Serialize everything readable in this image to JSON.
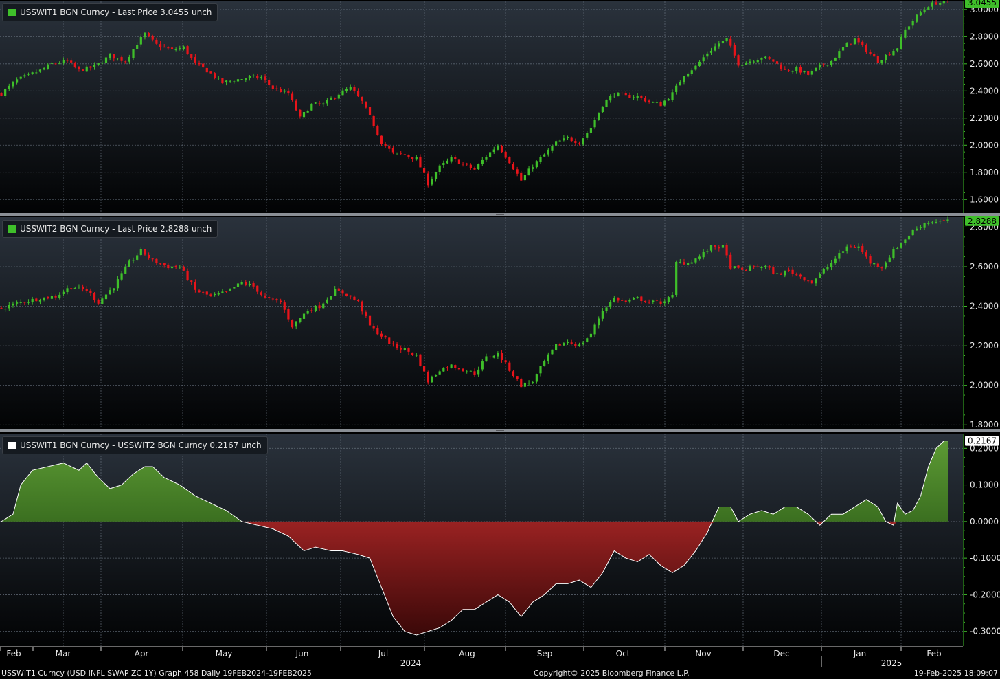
{
  "footer": {
    "left": "USSWIT1 Curncy (USD INFL SWAP ZC 1Y) Graph 458  Daily 19FEB2024-19FEB2025",
    "center": "Copyright© 2025 Bloomberg Finance L.P.",
    "right": "19-Feb-2025 18:09:07"
  },
  "colors": {
    "up": "#3fbf2a",
    "down": "#e8141a",
    "positive_fill": "#4a8a28",
    "negative_fill": "#8a1e1e",
    "axis_green": "#3fbf2a"
  },
  "x_axis": {
    "months": [
      "Feb",
      "Mar",
      "Apr",
      "May",
      "Jun",
      "Jul",
      "Aug",
      "Sep",
      "Oct",
      "Nov",
      "Dec",
      "Jan",
      "Feb"
    ],
    "years": [
      "2024",
      "2025"
    ]
  },
  "chart_data": [
    {
      "type": "candlestick",
      "legend": "USSWIT1 BGN Curncy - Last Price 3.0455  unch",
      "last_value_label": "3.0455",
      "ylim": [
        1.5,
        3.06
      ],
      "yticks": [
        "1.6000",
        "1.8000",
        "2.0000",
        "2.2000",
        "2.4000",
        "2.6000",
        "2.8000",
        "3.0000"
      ],
      "anchors": [
        [
          0,
          2.38
        ],
        [
          4,
          2.48
        ],
        [
          10,
          2.55
        ],
        [
          13,
          2.6
        ],
        [
          17,
          2.62
        ],
        [
          20,
          2.55
        ],
        [
          24,
          2.58
        ],
        [
          28,
          2.66
        ],
        [
          32,
          2.62
        ],
        [
          35,
          2.75
        ],
        [
          37,
          2.82
        ],
        [
          40,
          2.74
        ],
        [
          44,
          2.7
        ],
        [
          47,
          2.72
        ],
        [
          50,
          2.6
        ],
        [
          53,
          2.55
        ],
        [
          57,
          2.46
        ],
        [
          60,
          2.48
        ],
        [
          64,
          2.5
        ],
        [
          67,
          2.5
        ],
        [
          70,
          2.42
        ],
        [
          74,
          2.38
        ],
        [
          77,
          2.2
        ],
        [
          80,
          2.3
        ],
        [
          83,
          2.3
        ],
        [
          87,
          2.38
        ],
        [
          90,
          2.42
        ],
        [
          93,
          2.32
        ],
        [
          96,
          2.15
        ],
        [
          98,
          2.02
        ],
        [
          101,
          1.94
        ],
        [
          104,
          1.93
        ],
        [
          107,
          1.9
        ],
        [
          110,
          1.72
        ],
        [
          113,
          1.84
        ],
        [
          116,
          1.9
        ],
        [
          119,
          1.86
        ],
        [
          122,
          1.82
        ],
        [
          125,
          1.92
        ],
        [
          128,
          2.0
        ],
        [
          131,
          1.88
        ],
        [
          134,
          1.74
        ],
        [
          137,
          1.85
        ],
        [
          140,
          1.93
        ],
        [
          143,
          2.02
        ],
        [
          146,
          2.05
        ],
        [
          149,
          2.02
        ],
        [
          152,
          2.13
        ],
        [
          155,
          2.3
        ],
        [
          158,
          2.38
        ],
        [
          161,
          2.36
        ],
        [
          164,
          2.36
        ],
        [
          167,
          2.32
        ],
        [
          170,
          2.3
        ],
        [
          173,
          2.38
        ],
        [
          176,
          2.52
        ],
        [
          179,
          2.58
        ],
        [
          182,
          2.68
        ],
        [
          185,
          2.75
        ],
        [
          187,
          2.78
        ],
        [
          190,
          2.6
        ],
        [
          193,
          2.62
        ],
        [
          196,
          2.65
        ],
        [
          199,
          2.62
        ],
        [
          202,
          2.55
        ],
        [
          205,
          2.56
        ],
        [
          208,
          2.52
        ],
        [
          211,
          2.58
        ],
        [
          214,
          2.62
        ],
        [
          217,
          2.72
        ],
        [
          220,
          2.78
        ],
        [
          223,
          2.7
        ],
        [
          226,
          2.62
        ],
        [
          229,
          2.68
        ],
        [
          231,
          2.72
        ],
        [
          233,
          2.85
        ],
        [
          236,
          2.95
        ],
        [
          239,
          3.03
        ],
        [
          241,
          3.05
        ]
      ]
    },
    {
      "type": "candlestick",
      "legend": "USSWIT2 BGN Curncy - Last Price 2.8288  unch",
      "last_value_label": "2.8288",
      "ylim": [
        1.78,
        2.85
      ],
      "yticks": [
        "1.8000",
        "2.0000",
        "2.2000",
        "2.4000",
        "2.6000",
        "2.8000"
      ],
      "anchors": [
        [
          0,
          2.39
        ],
        [
          5,
          2.42
        ],
        [
          10,
          2.44
        ],
        [
          14,
          2.45
        ],
        [
          18,
          2.5
        ],
        [
          22,
          2.48
        ],
        [
          25,
          2.42
        ],
        [
          29,
          2.5
        ],
        [
          33,
          2.62
        ],
        [
          36,
          2.68
        ],
        [
          39,
          2.63
        ],
        [
          43,
          2.6
        ],
        [
          46,
          2.6
        ],
        [
          50,
          2.48
        ],
        [
          54,
          2.45
        ],
        [
          58,
          2.47
        ],
        [
          62,
          2.52
        ],
        [
          65,
          2.5
        ],
        [
          68,
          2.44
        ],
        [
          72,
          2.42
        ],
        [
          75,
          2.3
        ],
        [
          79,
          2.38
        ],
        [
          82,
          2.4
        ],
        [
          86,
          2.48
        ],
        [
          89,
          2.46
        ],
        [
          92,
          2.42
        ],
        [
          95,
          2.3
        ],
        [
          98,
          2.25
        ],
        [
          101,
          2.2
        ],
        [
          104,
          2.18
        ],
        [
          107,
          2.15
        ],
        [
          110,
          2.02
        ],
        [
          113,
          2.08
        ],
        [
          116,
          2.1
        ],
        [
          119,
          2.08
        ],
        [
          122,
          2.06
        ],
        [
          125,
          2.14
        ],
        [
          128,
          2.16
        ],
        [
          131,
          2.08
        ],
        [
          134,
          2.0
        ],
        [
          137,
          2.02
        ],
        [
          140,
          2.12
        ],
        [
          143,
          2.2
        ],
        [
          146,
          2.22
        ],
        [
          149,
          2.2
        ],
        [
          152,
          2.26
        ],
        [
          155,
          2.38
        ],
        [
          158,
          2.44
        ],
        [
          161,
          2.42
        ],
        [
          164,
          2.44
        ],
        [
          167,
          2.42
        ],
        [
          170,
          2.42
        ],
        [
          173,
          2.45
        ],
        [
          174,
          2.62
        ],
        [
          177,
          2.62
        ],
        [
          180,
          2.65
        ],
        [
          183,
          2.7
        ],
        [
          186,
          2.7
        ],
        [
          188,
          2.6
        ],
        [
          191,
          2.58
        ],
        [
          194,
          2.6
        ],
        [
          197,
          2.6
        ],
        [
          200,
          2.56
        ],
        [
          203,
          2.58
        ],
        [
          206,
          2.55
        ],
        [
          209,
          2.52
        ],
        [
          212,
          2.58
        ],
        [
          215,
          2.64
        ],
        [
          218,
          2.7
        ],
        [
          221,
          2.7
        ],
        [
          224,
          2.62
        ],
        [
          227,
          2.6
        ],
        [
          230,
          2.68
        ],
        [
          232,
          2.72
        ],
        [
          235,
          2.78
        ],
        [
          238,
          2.82
        ],
        [
          241,
          2.83
        ]
      ]
    },
    {
      "type": "area",
      "legend": "USSWIT1 BGN Curncy - USSWIT2 BGN Curncy 0.2167  unch",
      "last_value_label": "0.2167",
      "ylim": [
        -0.34,
        0.24
      ],
      "yticks": [
        "-0.3000",
        "-0.2000",
        "-0.1000",
        "0.0000",
        "0.1000",
        "0.2000"
      ],
      "anchors": [
        [
          0,
          0.0
        ],
        [
          3,
          0.02
        ],
        [
          5,
          0.1
        ],
        [
          8,
          0.14
        ],
        [
          12,
          0.15
        ],
        [
          16,
          0.16
        ],
        [
          20,
          0.14
        ],
        [
          22,
          0.16
        ],
        [
          25,
          0.12
        ],
        [
          28,
          0.09
        ],
        [
          31,
          0.1
        ],
        [
          34,
          0.13
        ],
        [
          37,
          0.15
        ],
        [
          39,
          0.15
        ],
        [
          42,
          0.12
        ],
        [
          46,
          0.1
        ],
        [
          50,
          0.07
        ],
        [
          54,
          0.05
        ],
        [
          58,
          0.03
        ],
        [
          62,
          0.0
        ],
        [
          66,
          -0.01
        ],
        [
          70,
          -0.02
        ],
        [
          74,
          -0.04
        ],
        [
          78,
          -0.08
        ],
        [
          81,
          -0.07
        ],
        [
          85,
          -0.08
        ],
        [
          88,
          -0.08
        ],
        [
          92,
          -0.09
        ],
        [
          95,
          -0.1
        ],
        [
          98,
          -0.18
        ],
        [
          101,
          -0.26
        ],
        [
          104,
          -0.3
        ],
        [
          107,
          -0.31
        ],
        [
          110,
          -0.3
        ],
        [
          113,
          -0.29
        ],
        [
          116,
          -0.27
        ],
        [
          119,
          -0.24
        ],
        [
          122,
          -0.24
        ],
        [
          125,
          -0.22
        ],
        [
          128,
          -0.2
        ],
        [
          131,
          -0.22
        ],
        [
          134,
          -0.26
        ],
        [
          137,
          -0.22
        ],
        [
          140,
          -0.2
        ],
        [
          143,
          -0.17
        ],
        [
          146,
          -0.17
        ],
        [
          149,
          -0.16
        ],
        [
          152,
          -0.18
        ],
        [
          155,
          -0.14
        ],
        [
          158,
          -0.08
        ],
        [
          161,
          -0.1
        ],
        [
          164,
          -0.11
        ],
        [
          167,
          -0.09
        ],
        [
          170,
          -0.12
        ],
        [
          173,
          -0.14
        ],
        [
          176,
          -0.12
        ],
        [
          179,
          -0.08
        ],
        [
          182,
          -0.03
        ],
        [
          185,
          0.04
        ],
        [
          188,
          0.04
        ],
        [
          190,
          0.0
        ],
        [
          193,
          0.02
        ],
        [
          196,
          0.03
        ],
        [
          199,
          0.02
        ],
        [
          202,
          0.04
        ],
        [
          205,
          0.04
        ],
        [
          208,
          0.02
        ],
        [
          211,
          -0.01
        ],
        [
          214,
          0.02
        ],
        [
          217,
          0.02
        ],
        [
          220,
          0.04
        ],
        [
          223,
          0.06
        ],
        [
          226,
          0.04
        ],
        [
          228,
          0.0
        ],
        [
          230,
          -0.01
        ],
        [
          231,
          0.05
        ],
        [
          233,
          0.02
        ],
        [
          235,
          0.03
        ],
        [
          237,
          0.07
        ],
        [
          239,
          0.15
        ],
        [
          241,
          0.2
        ],
        [
          243,
          0.22
        ],
        [
          244,
          0.22
        ]
      ]
    }
  ]
}
